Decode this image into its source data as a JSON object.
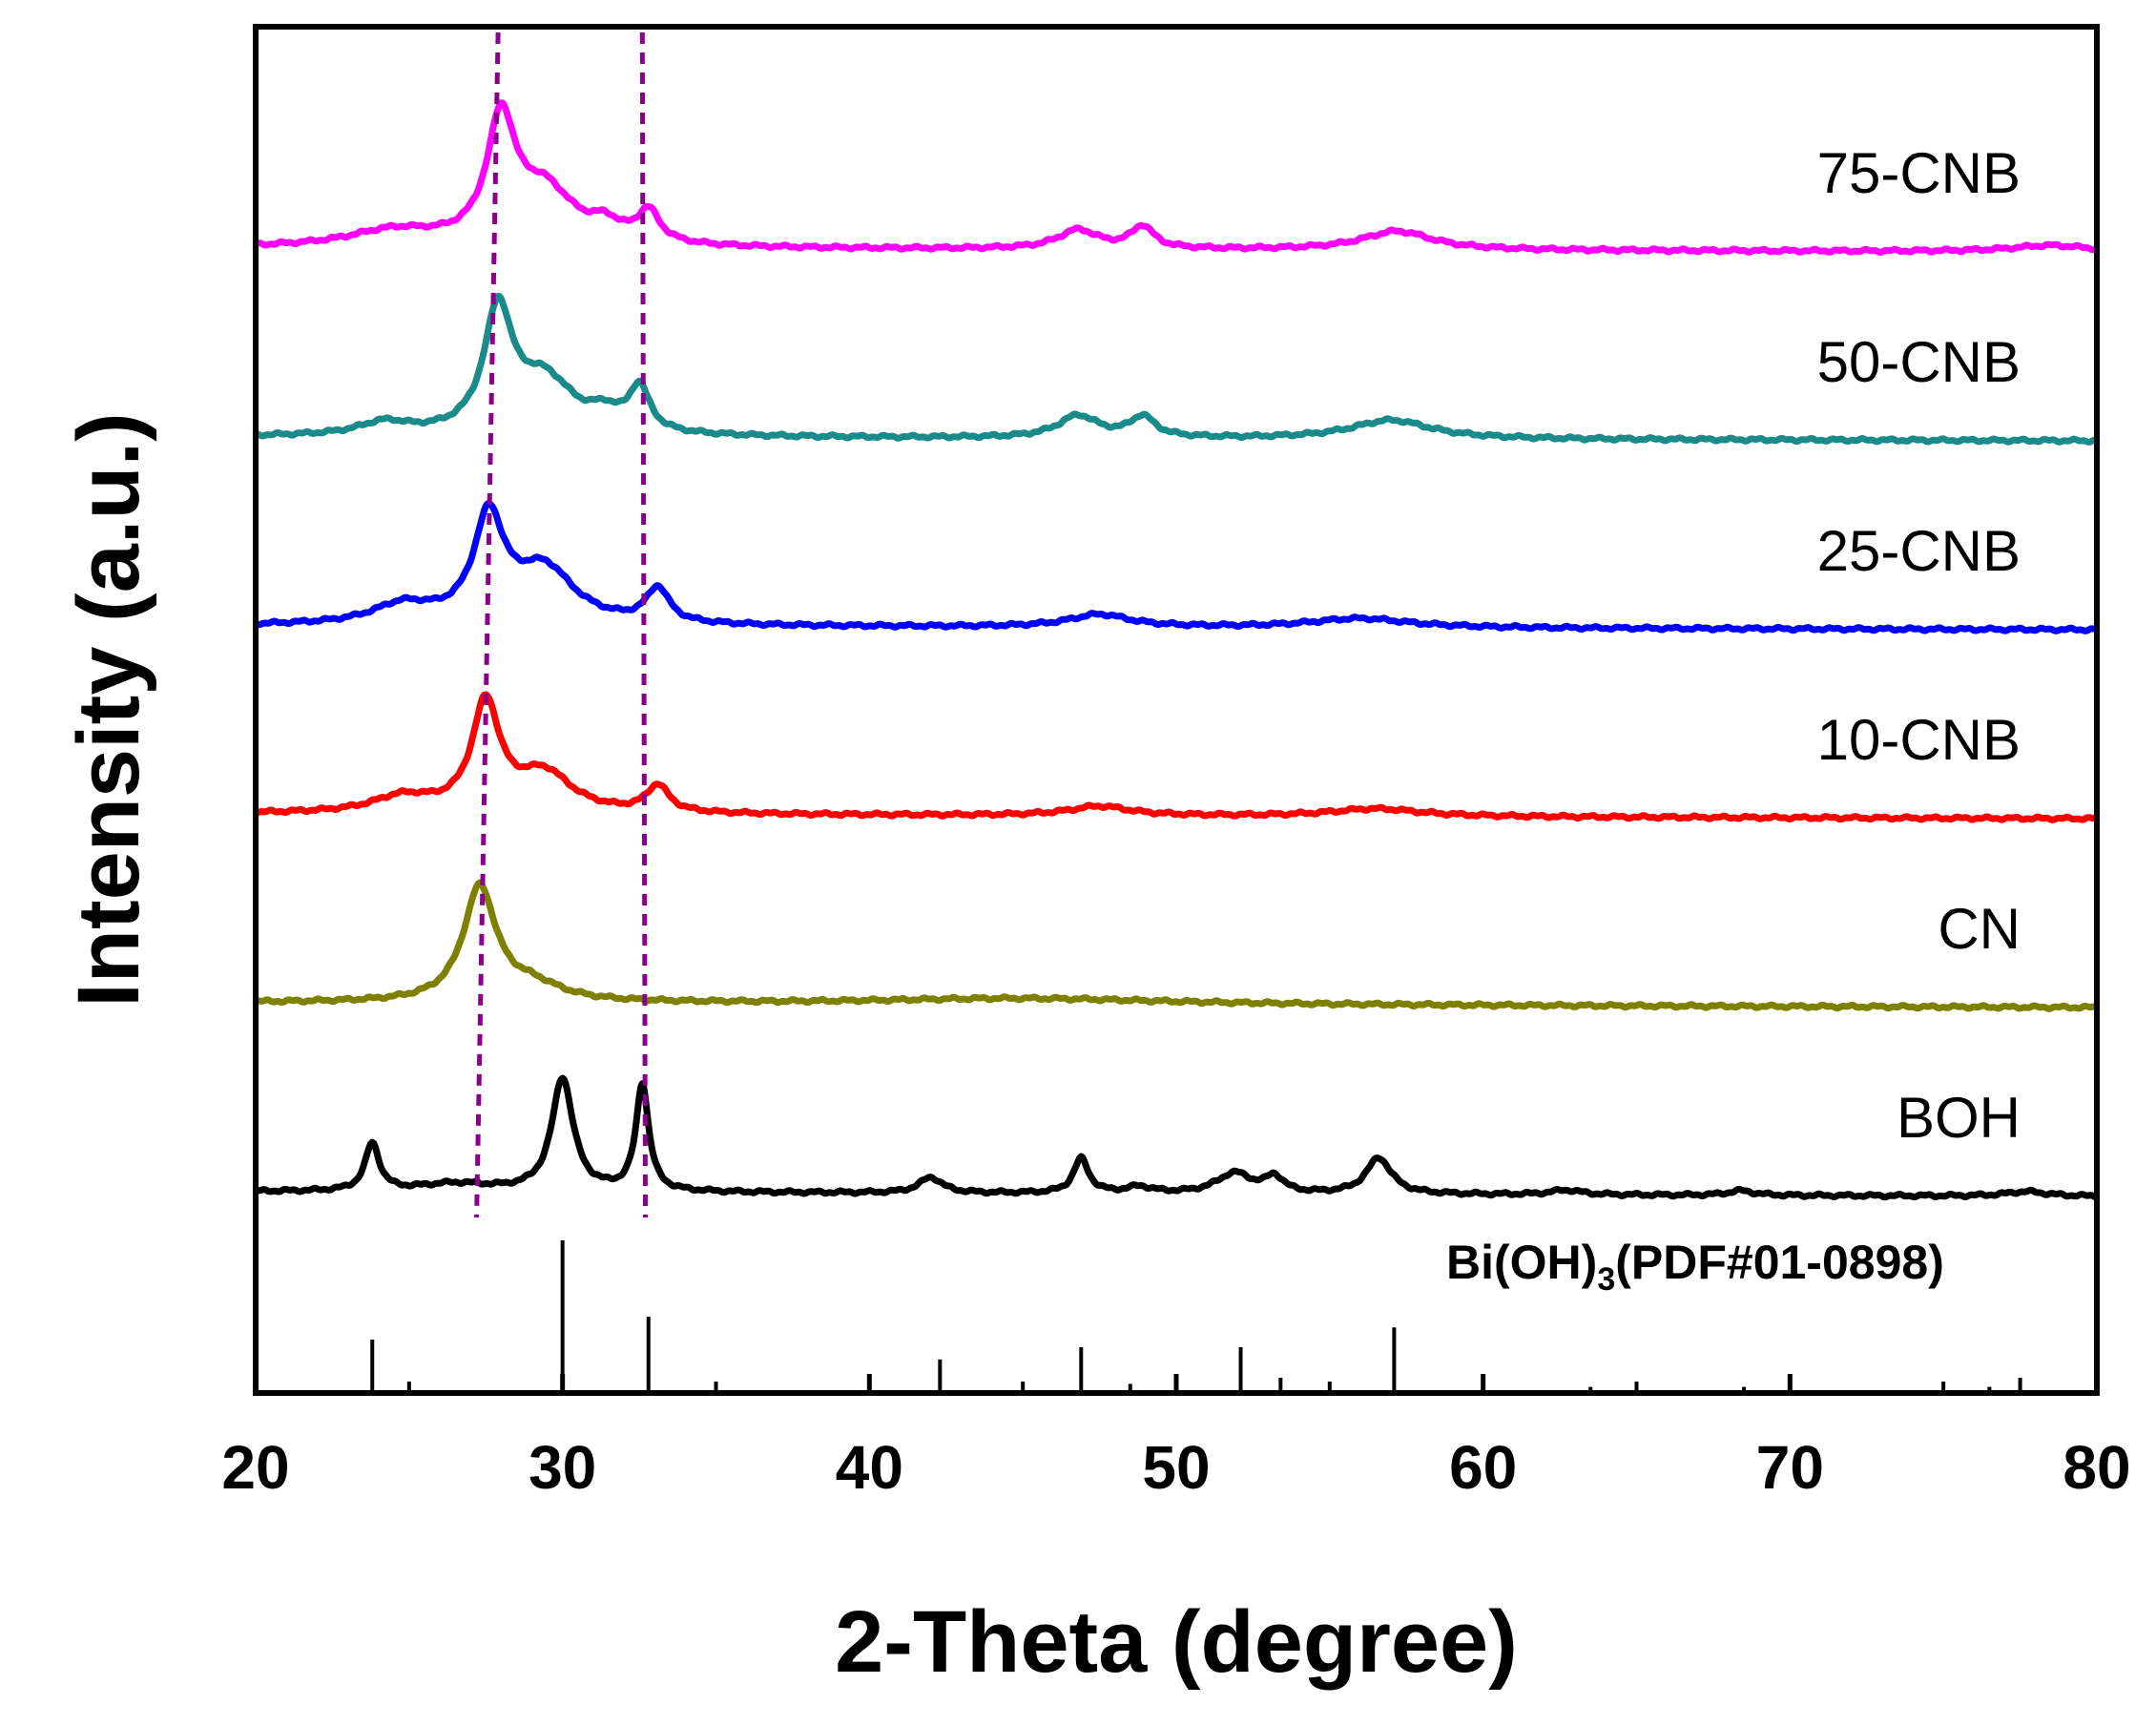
{
  "chart_data": {
    "type": "line",
    "title": "",
    "xlabel": "2-Theta (degree)",
    "ylabel": "Intensity (a.u.)",
    "xlim": [
      20,
      80
    ],
    "x_ticks": [
      20,
      30,
      40,
      50,
      60,
      70,
      80
    ],
    "x_minor_ticks": [
      25,
      35,
      45,
      55,
      65,
      75
    ],
    "y_ticks": false,
    "grid": false,
    "vertical_guides": [
      {
        "name": "guide-1",
        "x_top": 27.9,
        "x_bottom": 27.2,
        "color": "#8b008b",
        "style": "dashed"
      },
      {
        "name": "guide-2",
        "x_top": 32.6,
        "x_bottom": 32.7,
        "color": "#8b008b",
        "style": "dashed"
      }
    ],
    "series": [
      {
        "name": "75-CNB",
        "color": "#ff00ff",
        "offset": 5,
        "baseline": 0.04,
        "peaks": [
          {
            "x": 24.5,
            "h": 0.1,
            "w": 1.8
          },
          {
            "x": 28.0,
            "h": 0.75,
            "w": 0.55
          },
          {
            "x": 29.4,
            "h": 0.35,
            "w": 1.2
          },
          {
            "x": 31.4,
            "h": 0.1,
            "w": 0.6
          },
          {
            "x": 32.8,
            "h": 0.2,
            "w": 0.45
          },
          {
            "x": 46.8,
            "h": 0.12,
            "w": 0.8
          },
          {
            "x": 48.9,
            "h": 0.14,
            "w": 0.45
          },
          {
            "x": 57.2,
            "h": 0.12,
            "w": 1.4
          },
          {
            "x": 78.5,
            "h": 0.04,
            "w": 1.5
          }
        ]
      },
      {
        "name": "50-CNB",
        "color": "#1a8a8a",
        "offset": 4,
        "baseline": 0.04,
        "peaks": [
          {
            "x": 24.2,
            "h": 0.08,
            "w": 1.0
          },
          {
            "x": 27.9,
            "h": 0.75,
            "w": 0.55
          },
          {
            "x": 29.4,
            "h": 0.35,
            "w": 1.2
          },
          {
            "x": 31.4,
            "h": 0.1,
            "w": 0.6
          },
          {
            "x": 32.5,
            "h": 0.28,
            "w": 0.4
          },
          {
            "x": 46.8,
            "h": 0.14,
            "w": 0.8
          },
          {
            "x": 48.9,
            "h": 0.13,
            "w": 0.5
          },
          {
            "x": 57.0,
            "h": 0.12,
            "w": 1.6
          }
        ]
      },
      {
        "name": "25-CNB",
        "color": "#0000ff",
        "offset": 3,
        "baseline": 0.04,
        "peaks": [
          {
            "x": 24.8,
            "h": 0.12,
            "w": 1.2
          },
          {
            "x": 27.6,
            "h": 0.65,
            "w": 0.6
          },
          {
            "x": 29.4,
            "h": 0.35,
            "w": 1.2
          },
          {
            "x": 33.1,
            "h": 0.22,
            "w": 0.45
          },
          {
            "x": 47.5,
            "h": 0.08,
            "w": 1.2
          },
          {
            "x": 56.0,
            "h": 0.06,
            "w": 2.0
          }
        ]
      },
      {
        "name": "10-CNB",
        "color": "#ff0000",
        "offset": 2,
        "baseline": 0.05,
        "peaks": [
          {
            "x": 24.8,
            "h": 0.1,
            "w": 1.2
          },
          {
            "x": 27.5,
            "h": 0.68,
            "w": 0.55
          },
          {
            "x": 29.4,
            "h": 0.25,
            "w": 1.1
          },
          {
            "x": 33.1,
            "h": 0.17,
            "w": 0.45
          },
          {
            "x": 47.5,
            "h": 0.06,
            "w": 1.2
          },
          {
            "x": 56.5,
            "h": 0.05,
            "w": 1.8
          }
        ]
      },
      {
        "name": "CN",
        "color": "#808000",
        "offset": 1,
        "baseline": 0.05,
        "peaks": [
          {
            "x": 27.3,
            "h": 0.72,
            "w": 0.65
          },
          {
            "x": 29.0,
            "h": 0.1,
            "w": 1.2
          },
          {
            "x": 45.0,
            "h": 0.04,
            "w": 6.0
          }
        ]
      },
      {
        "name": "BOH",
        "color": "#000000",
        "offset": 0,
        "baseline": 0.05,
        "peaks": [
          {
            "x": 23.8,
            "h": 0.3,
            "w": 0.28
          },
          {
            "x": 26.5,
            "h": 0.05,
            "w": 1.5
          },
          {
            "x": 30.0,
            "h": 0.72,
            "w": 0.42
          },
          {
            "x": 32.6,
            "h": 0.68,
            "w": 0.25
          },
          {
            "x": 42.0,
            "h": 0.1,
            "w": 0.45
          },
          {
            "x": 46.9,
            "h": 0.22,
            "w": 0.3
          },
          {
            "x": 48.8,
            "h": 0.04,
            "w": 0.5
          },
          {
            "x": 51.9,
            "h": 0.13,
            "w": 0.7
          },
          {
            "x": 53.2,
            "h": 0.1,
            "w": 0.35
          },
          {
            "x": 56.6,
            "h": 0.23,
            "w": 0.5
          },
          {
            "x": 62.7,
            "h": 0.03,
            "w": 0.6
          },
          {
            "x": 68.4,
            "h": 0.03,
            "w": 0.5
          },
          {
            "x": 77.7,
            "h": 0.03,
            "w": 0.8
          }
        ]
      }
    ],
    "reference": {
      "label_pre": "Bi(OH)",
      "label_sub": "3",
      "label_post": "(PDF#01-0898)",
      "sticks": [
        {
          "x": 23.8,
          "h": 0.35
        },
        {
          "x": 30.0,
          "h": 1.0
        },
        {
          "x": 32.8,
          "h": 0.5
        },
        {
          "x": 42.3,
          "h": 0.22
        },
        {
          "x": 46.9,
          "h": 0.3
        },
        {
          "x": 48.5,
          "h": 0.06
        },
        {
          "x": 52.1,
          "h": 0.3
        },
        {
          "x": 53.4,
          "h": 0.1
        },
        {
          "x": 57.1,
          "h": 0.43
        },
        {
          "x": 63.5,
          "h": 0.04
        },
        {
          "x": 68.5,
          "h": 0.04
        },
        {
          "x": 76.5,
          "h": 0.04
        },
        {
          "x": 77.5,
          "h": 0.1
        }
      ]
    }
  }
}
